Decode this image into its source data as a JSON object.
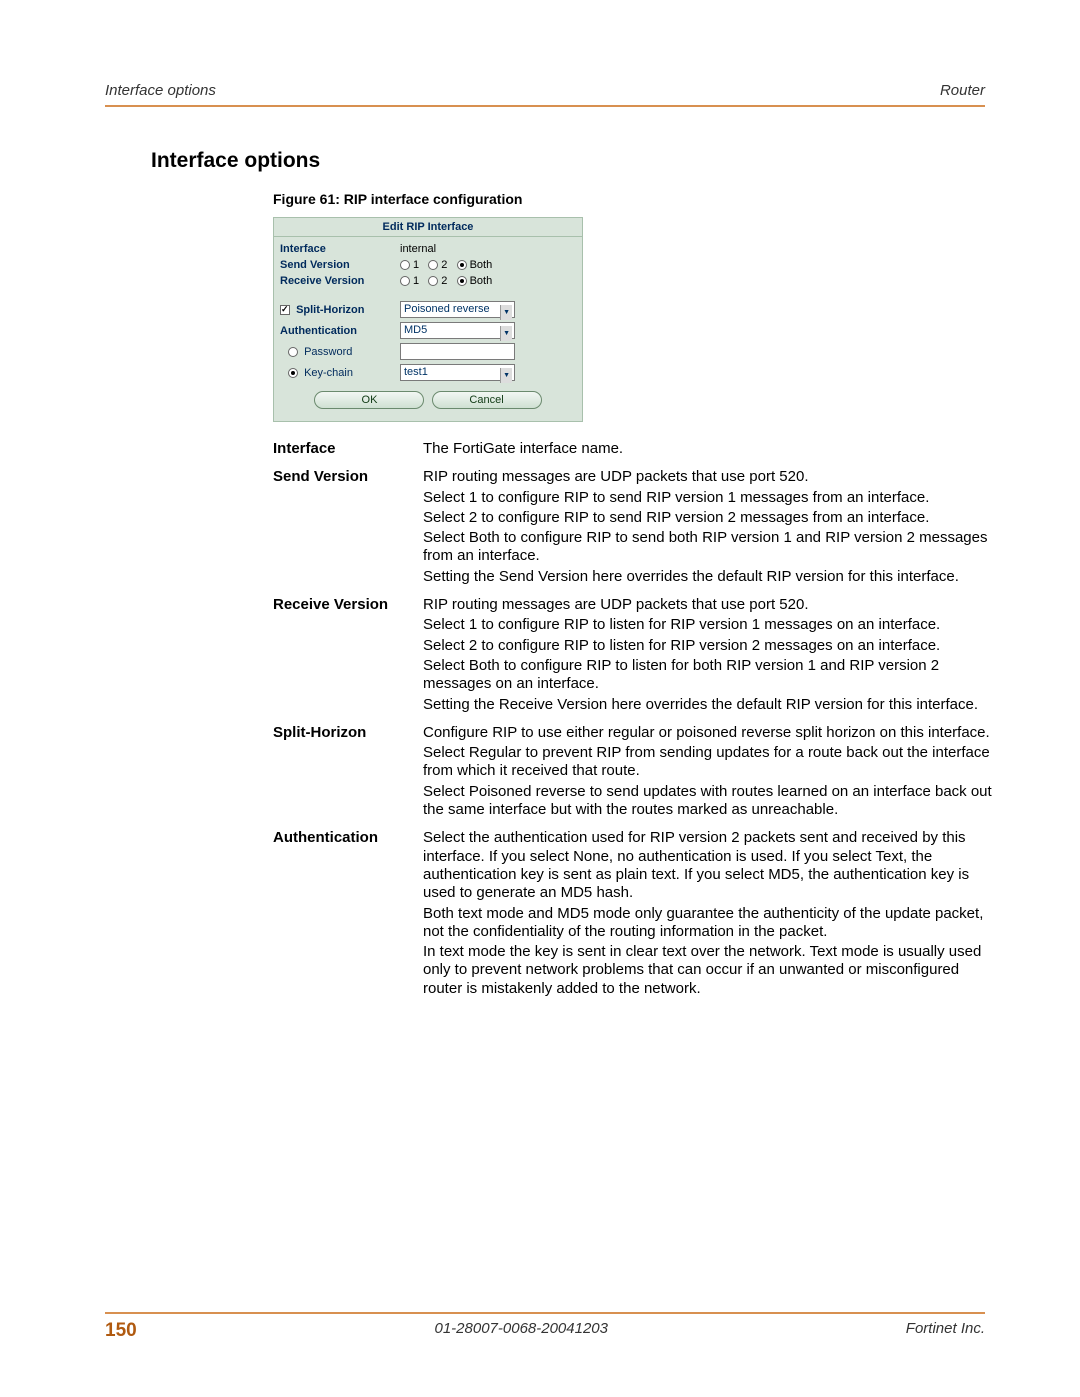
{
  "header": {
    "left": "Interface options",
    "right": "Router"
  },
  "section_title": "Interface options",
  "figure_caption": "Figure 61: RIP interface configuration",
  "ui": {
    "title": "Edit RIP Interface",
    "interface_label": "Interface",
    "interface_value": "internal",
    "send_version_label": "Send Version",
    "receive_version_label": "Receive Version",
    "radio_1": "1",
    "radio_2": "2",
    "radio_both": "Both",
    "split_horizon_label": "Split-Horizon",
    "split_horizon_value": "Poisoned reverse",
    "auth_label": "Authentication",
    "auth_value": "MD5",
    "password_label": "Password",
    "keychain_label": "Key-chain",
    "keychain_value": "test1",
    "ok_label": "OK",
    "cancel_label": "Cancel"
  },
  "desc": {
    "interface": {
      "term": "Interface",
      "p1": "The FortiGate interface name."
    },
    "send_version": {
      "term": "Send Version",
      "p1": "RIP routing messages are UDP packets that use port 520.",
      "p2": "Select 1 to configure RIP to send RIP version 1 messages from an interface.",
      "p3": "Select 2 to configure RIP to send RIP version 2 messages from an interface.",
      "p4": "Select Both to configure RIP to send both RIP version 1 and RIP version 2 messages from an interface.",
      "p5": "Setting the Send Version here overrides the default RIP version for this interface."
    },
    "receive_version": {
      "term": "Receive Version",
      "p1": "RIP routing messages are UDP packets that use port 520.",
      "p2": "Select 1 to configure RIP to listen for RIP version 1 messages on an interface.",
      "p3": "Select 2 to configure RIP to listen for RIP version 2 messages on an interface.",
      "p4": "Select Both to configure RIP to listen for both RIP version 1 and RIP version 2 messages on an interface.",
      "p5": "Setting the Receive Version here overrides the default RIP version for this interface."
    },
    "split_horizon": {
      "term": "Split-Horizon",
      "p1": "Configure RIP to use either regular or poisoned reverse split horizon on this interface.",
      "p2": "Select Regular to prevent RIP from sending updates for a route back out the interface from which it received that route.",
      "p3": "Select Poisoned reverse to send updates with routes learned on an interface back out the same interface but with the routes marked as unreachable."
    },
    "authentication": {
      "term": "Authentication",
      "p1": "Select the authentication used for RIP version 2 packets sent and received by this interface. If you select None, no authentication is used. If you select Text, the authentication key is sent as plain text. If you select MD5, the authentication key is used to generate an MD5 hash.",
      "p2": "Both text mode and MD5 mode only guarantee the authenticity of the update packet, not the confidentiality of the routing information in the packet.",
      "p3": "In text mode the key is sent in clear text over the network. Text mode is usually used only to prevent network problems that can occur if an unwanted or misconfigured router is mistakenly added to the network."
    }
  },
  "footer": {
    "page": "150",
    "center": "01-28007-0068-20041203",
    "right": "Fortinet Inc."
  }
}
